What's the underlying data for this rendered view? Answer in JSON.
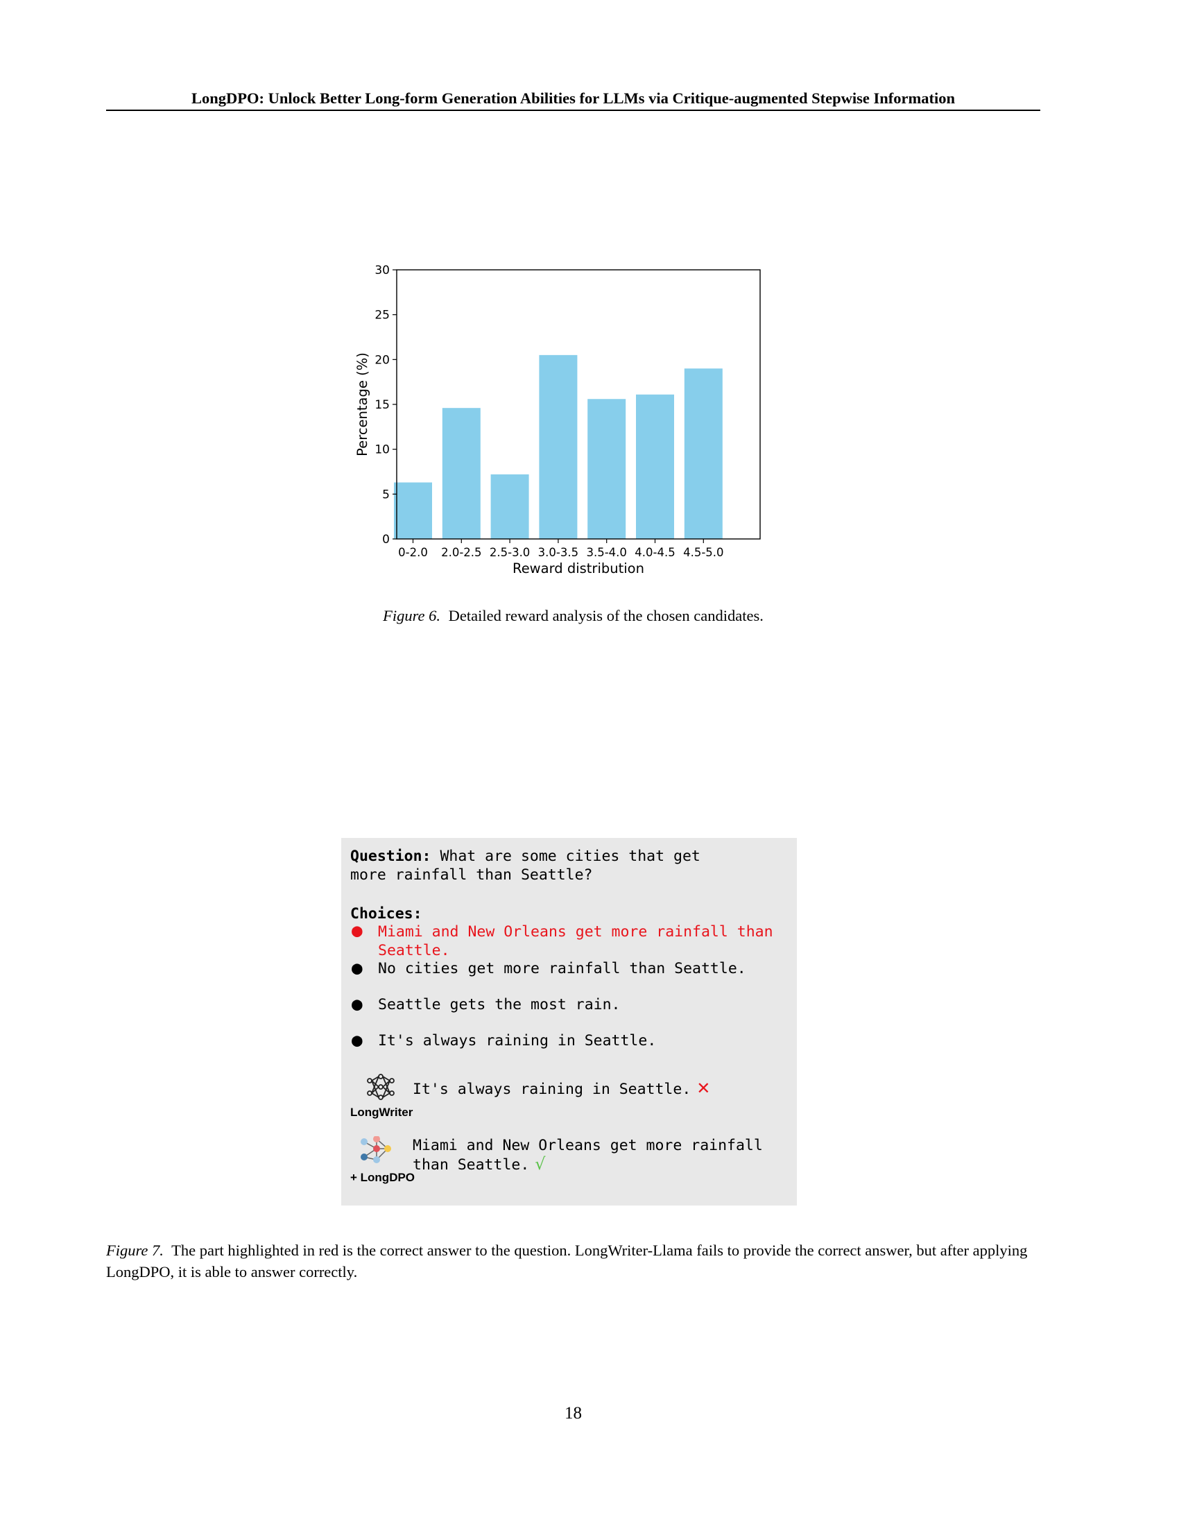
{
  "header": {
    "running_title": "LongDPO: Unlock Better Long-form Generation Abilities for LLMs via Critique-augmented Stepwise Information"
  },
  "chart_data": {
    "type": "bar",
    "categories": [
      "0-2.0",
      "2.0-2.5",
      "2.5-3.0",
      "3.0-3.5",
      "3.5-4.0",
      "4.0-4.5",
      "4.5-5.0"
    ],
    "values": [
      6.3,
      14.6,
      7.2,
      20.5,
      15.6,
      16.1,
      19.0
    ],
    "title": "",
    "xlabel": "Reward distribution",
    "ylabel": "Percentage (%)",
    "ylim": [
      0,
      30
    ],
    "yticks": [
      0,
      5,
      10,
      15,
      20,
      25,
      30
    ],
    "grid": false,
    "bar_color": "#87ceeb"
  },
  "figure6": {
    "label": "Figure 6.",
    "caption": "Detailed reward analysis of the chosen candidates."
  },
  "qa": {
    "question_label": "Question:",
    "question_line1": "What are some cities that get",
    "question_line2": "more rainfall than Seattle?",
    "choices_label": "Choices:",
    "choices": [
      {
        "text": "Miami and New Orleans get more rainfall than Seattle.",
        "correct": true
      },
      {
        "text": "No cities get more rainfall than Seattle.",
        "correct": false
      },
      {
        "text": "Seattle gets the most rain.",
        "correct": false
      },
      {
        "text": "It's always raining in Seattle.",
        "correct": false
      }
    ],
    "bullet_symbol": "●",
    "highlight_color": "#e8141c",
    "models": [
      {
        "name": "LongWriter",
        "icon": "neural-network-icon",
        "answer": "It's always raining in Seattle.",
        "mark": "✕",
        "mark_color": "#e8141c"
      },
      {
        "name": "+ LongDPO",
        "icon": "colored-network-icon",
        "answer": "Miami and New Orleans get more rainfall than Seattle.",
        "mark": "√",
        "mark_color": "#5bc24a"
      }
    ]
  },
  "figure7": {
    "label": "Figure 7.",
    "caption": "The part highlighted in red is the correct answer to the question. LongWriter-Llama fails to provide the correct answer, but after applying LongDPO, it is able to answer correctly."
  },
  "page_number": "18"
}
